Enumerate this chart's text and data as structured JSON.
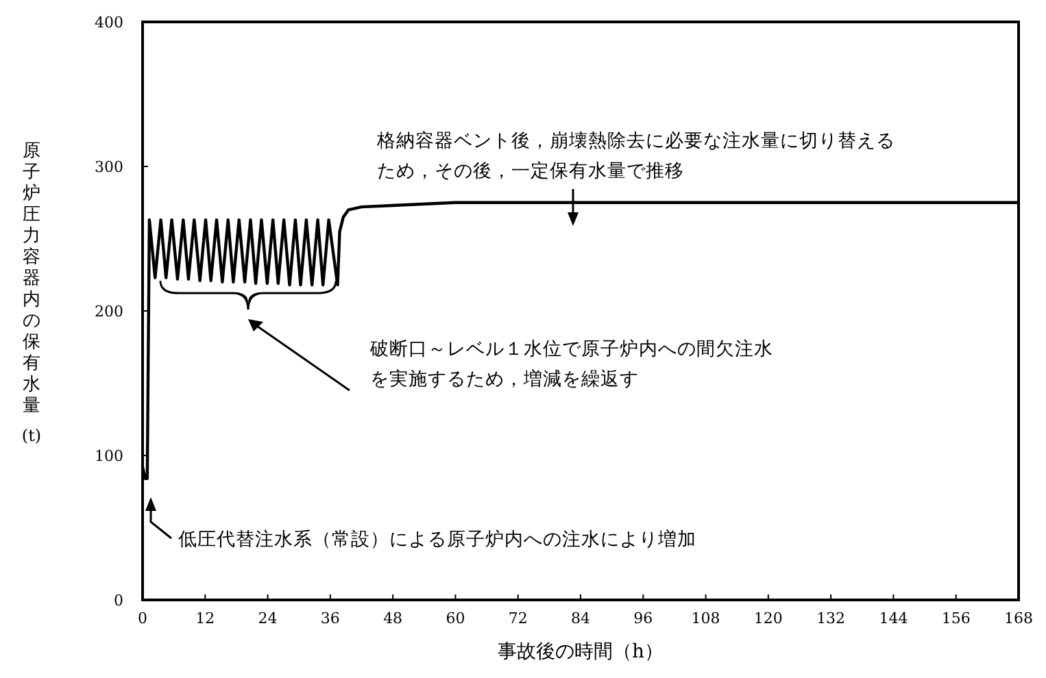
{
  "chart_data": {
    "type": "line",
    "xlabel": "事故後の時間（h）",
    "ylabel": "原子炉圧力容器内の保有水量 (t)",
    "xlim": [
      0,
      168
    ],
    "xticks": [
      0,
      12,
      24,
      36,
      48,
      60,
      72,
      84,
      96,
      108,
      120,
      132,
      144,
      156,
      168
    ],
    "ylim": [
      0,
      400
    ],
    "yticks": [
      0,
      100,
      200,
      300,
      400
    ],
    "grid": false,
    "marker": "none",
    "line_style": "solid",
    "series": [
      {
        "color": "#000000",
        "x": [
          0,
          0.5,
          0.9,
          1.3,
          2.4,
          3.5,
          4.5,
          5.6,
          6.7,
          7.8,
          8.8,
          9.9,
          11.0,
          12.1,
          13.1,
          14.2,
          15.3,
          16.4,
          17.4,
          18.5,
          19.6,
          20.7,
          21.7,
          22.8,
          23.9,
          25.0,
          26.0,
          27.1,
          28.2,
          29.3,
          30.3,
          31.4,
          32.5,
          33.6,
          34.6,
          35.7,
          37.4,
          37.8,
          38.5,
          39.5,
          42,
          48,
          60,
          72,
          96,
          120,
          144,
          168
        ],
        "values": [
          92,
          84,
          84,
          263,
          223,
          263,
          223,
          263,
          222,
          263,
          222,
          263,
          221,
          263,
          221,
          263,
          220,
          263,
          220,
          263,
          220,
          263,
          219,
          263,
          219,
          263,
          219,
          263,
          218,
          263,
          218,
          263,
          218,
          263,
          218,
          263,
          218,
          255,
          265,
          270,
          272,
          273,
          275,
          275,
          275,
          275,
          275,
          275
        ]
      }
    ],
    "annotations": [
      "格納容器ベント後，崩壊熱除去に必要な注水量に切り替えるため，その後，一定保有水量で推移",
      "破断口～レベル１水位で原子炉内への間欠注水を実施するため，増減を繰返す",
      "低圧代替注水系（常設）による原子炉内への注水により増加"
    ]
  }
}
